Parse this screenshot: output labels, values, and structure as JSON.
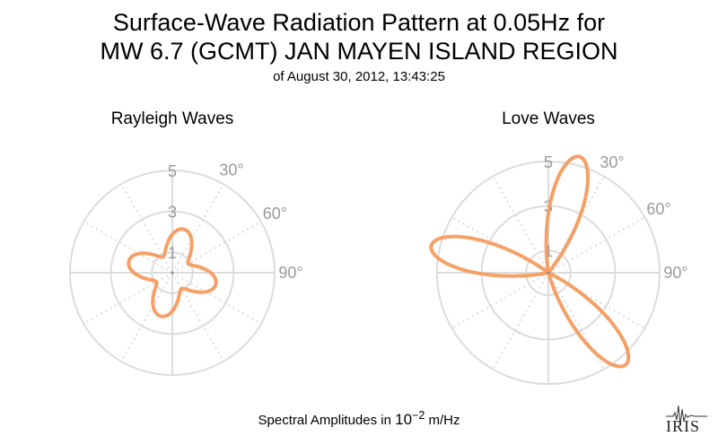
{
  "title": {
    "line1": "Surface-Wave Radiation Pattern at 0.05Hz for",
    "line2": "MW 6.7 (GCMT) JAN MAYEN ISLAND REGION",
    "subtitle": "of August 30, 2012, 13:43:25"
  },
  "footer": {
    "prefix": "Spectral Amplitudes in ",
    "base": "10",
    "exponent": "−2",
    "unit": " m/Hz"
  },
  "logo": {
    "text": "IRIS"
  },
  "colors": {
    "pattern": "#f4a066",
    "grid": "#dcdcdc",
    "tick": "#9a9a9a"
  },
  "chart_data": [
    {
      "type": "polar",
      "title": "Rayleigh Waves",
      "radial_ticks": [
        1,
        3,
        5
      ],
      "radial_range": [
        0,
        5
      ],
      "angle_ticks": [
        "30°",
        "60°",
        "90°"
      ],
      "angle_step_deg": 30,
      "direction": "clockwise from north",
      "series": [
        {
          "pattern": "four-lobe",
          "amplitude_max": 2.2,
          "amplitude_min": 0.9,
          "lobe_azimuths_deg": [
            15,
            105,
            195,
            285
          ]
        }
      ]
    },
    {
      "type": "polar",
      "title": "Love Waves",
      "radial_ticks": [
        1,
        3,
        5
      ],
      "radial_range": [
        0,
        5
      ],
      "angle_ticks": [
        "30°",
        "60°",
        "90°"
      ],
      "angle_step_deg": 30,
      "direction": "clockwise from north",
      "series": [
        {
          "pattern": "three-lobe",
          "amplitude_max": 5.4,
          "lobe_azimuths_deg": [
            15,
            140,
            283
          ]
        }
      ]
    }
  ]
}
